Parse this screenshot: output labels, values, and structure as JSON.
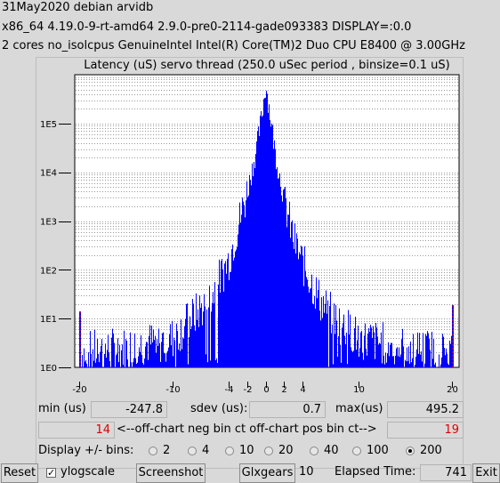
{
  "header": {
    "line1": "31May2020 debian arvidb",
    "line2": " x86_64  4.19.0-9-rt-amd64  2.9.0-pre0-2114-gade093383  DISPLAY=:0.0",
    "line3": " 2 cores  no_isolcpus   GenuineIntel  Intel(R) Core(TM)2 Duo CPU E8400 @ 3.00GHz"
  },
  "chart_data": {
    "type": "bar",
    "title": "Latency (uS) servo thread (250.0 uSec period , binsize=0.1 uS)",
    "y_scale": "log",
    "y_tick_labels": [
      "1E0",
      "1E1",
      "1E2",
      "1E3",
      "1E4",
      "1E5"
    ],
    "ylim": [
      1,
      1000000
    ],
    "x_tick_labels": [
      "-20",
      "-10",
      "-4",
      "-2",
      "0",
      "2",
      "4",
      "10",
      "20"
    ],
    "x_tick_values": [
      -20,
      -10,
      -4,
      -2,
      0,
      2,
      4,
      10,
      20
    ],
    "xlim": [
      -20,
      20
    ],
    "grid": true,
    "series": [
      {
        "color": "#0000ff",
        "approx_envelope_log10": [
          [
            -20,
            0.3
          ],
          [
            -15,
            0.4
          ],
          [
            -10,
            0.6
          ],
          [
            -8,
            1.0
          ],
          [
            -6,
            1.4
          ],
          [
            -5,
            1.8
          ],
          [
            -4,
            2.2
          ],
          [
            -3,
            2.9
          ],
          [
            -2,
            3.6
          ],
          [
            -1,
            4.5
          ],
          [
            -0.5,
            5.1
          ],
          [
            0,
            5.8
          ],
          [
            0.5,
            5.1
          ],
          [
            1,
            4.4
          ],
          [
            2,
            3.4
          ],
          [
            3,
            2.6
          ],
          [
            4,
            2.1
          ],
          [
            5,
            1.7
          ],
          [
            6,
            1.3
          ],
          [
            8,
            0.9
          ],
          [
            10,
            0.6
          ],
          [
            15,
            0.4
          ],
          [
            20,
            0.3
          ]
        ],
        "offchart_bins": {
          "neg_at_-20": 14,
          "pos_at_20": 19
        }
      }
    ]
  },
  "stats": {
    "min_label": "min (us)",
    "min_value": "-247.8",
    "sdev_label": "sdev (us):",
    "sdev_value": "0.7",
    "max_label": "max(us)",
    "max_value": "495.2",
    "neg_bin_value": "14",
    "offchart_label": "<--off-chart neg bin ct   off-chart pos bin ct-->",
    "pos_bin_value": "19"
  },
  "bins": {
    "label": "Display +/- bins:",
    "options": [
      "2",
      "4",
      "10",
      "20",
      "40",
      "100",
      "200"
    ],
    "selected": "200"
  },
  "toolbar": {
    "reset": "Reset",
    "ylogscale": "ylogscale",
    "ylogscale_checked": true,
    "screenshot": "Screenshot",
    "glxgears": "Glxgears",
    "glxgears_value": "10",
    "elapsed_label": "Elapsed Time:",
    "elapsed_value": "741",
    "exit": "Exit"
  }
}
